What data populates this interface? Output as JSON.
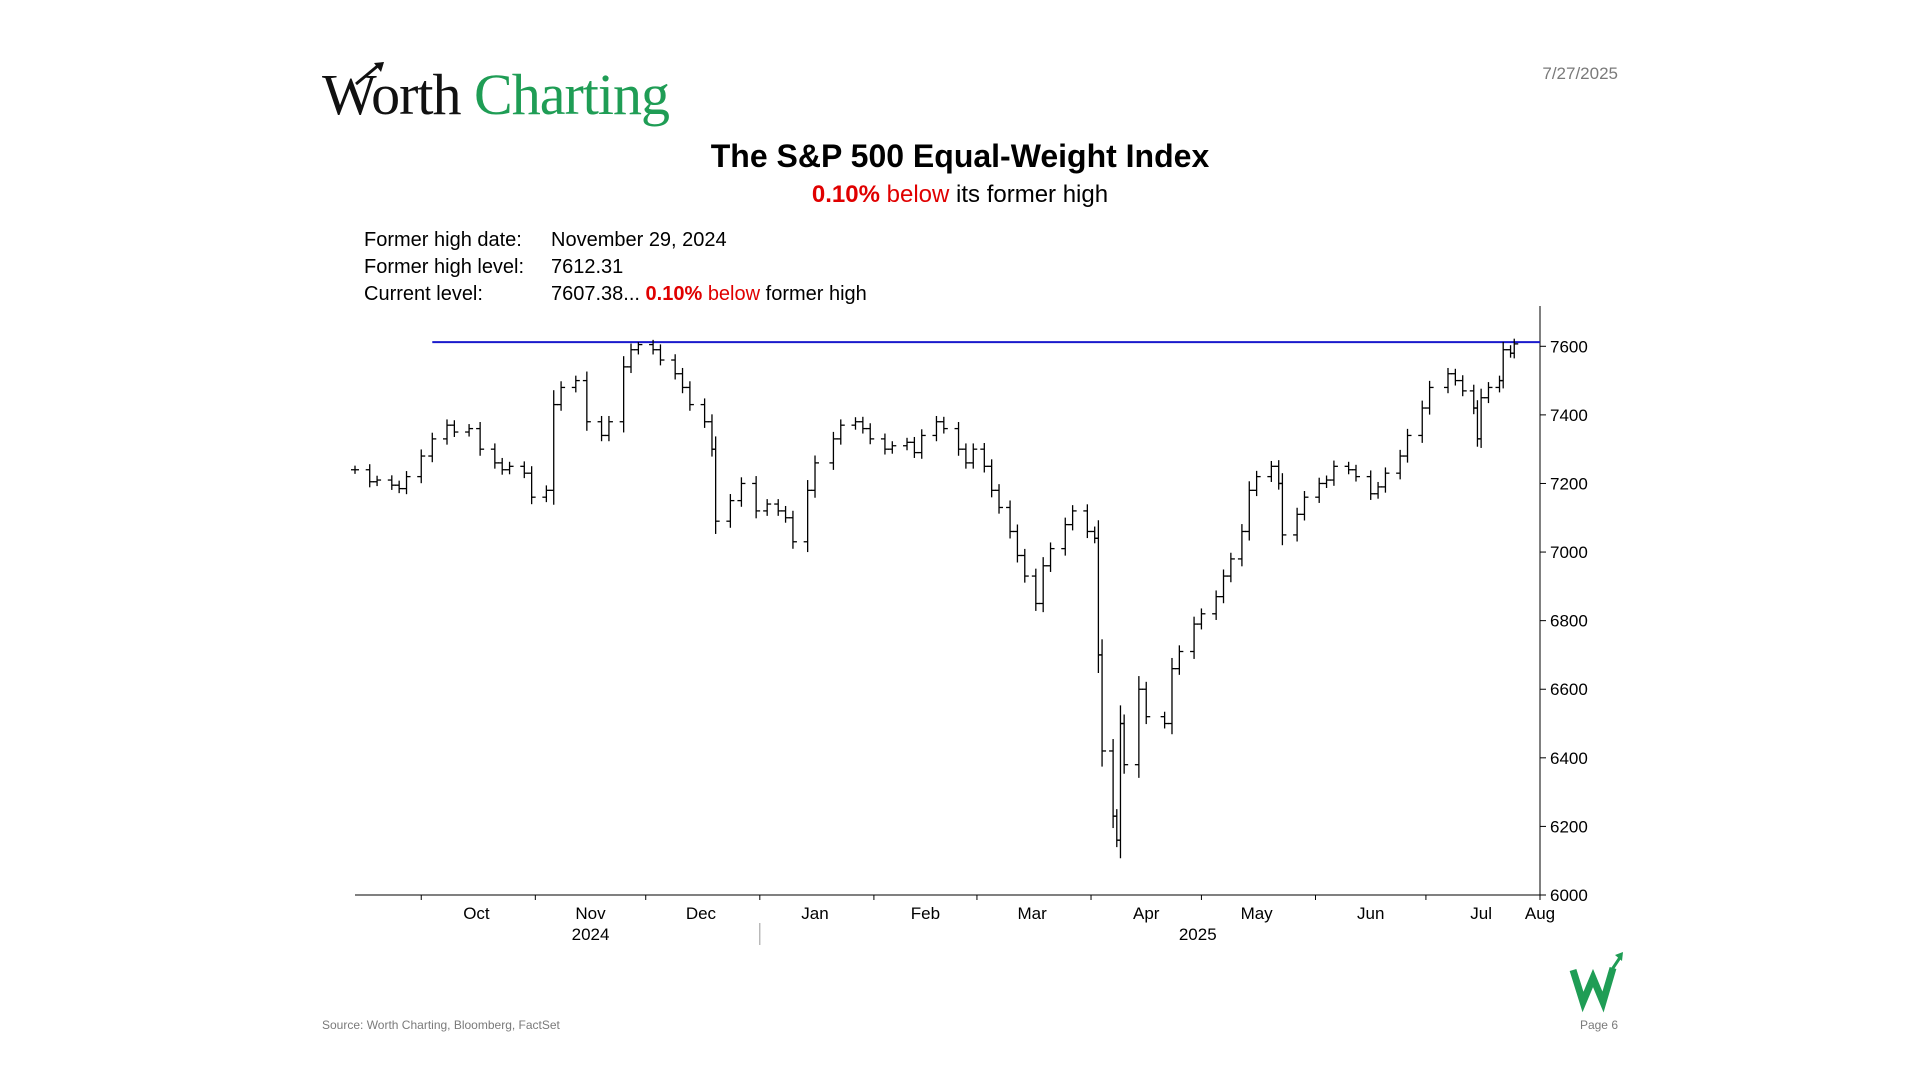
{
  "brand": {
    "word1": "Worth",
    "word2": "Charting"
  },
  "date": "7/27/2025",
  "title": "The S&P 500 Equal-Weight Index",
  "subtitle": {
    "pct": "0.10%",
    "below": "below",
    "rest": "its former high"
  },
  "stats": {
    "high_date_label": "Former high date:",
    "high_date_value": "November 29, 2024",
    "high_level_label": "Former high level:",
    "high_level_value": "7612.31",
    "current_label": "Current level:",
    "current_value": "7607.38...",
    "current_pct": "0.10%",
    "current_below": "below",
    "current_rest": "former high"
  },
  "footer": {
    "source": "Source: Worth Charting, Bloomberg, FactSet",
    "page": "Page 6"
  },
  "colors": {
    "brand_green": "#1f9d55",
    "highlight_red": "#e00000",
    "high_line": "#1a1acc",
    "bars": "#000000"
  },
  "icons": {
    "logo_mark": "w-arrow-logo-icon",
    "logo_arrow": "arrow-up-right-icon"
  },
  "chart_data": {
    "type": "ohlc-bar",
    "y_range": [
      6000,
      7700
    ],
    "y_ticks": [
      6000,
      6200,
      6400,
      6600,
      6800,
      7000,
      7200,
      7400,
      7600
    ],
    "y_axis_position": "right",
    "x_range": [
      "2024-09-13",
      "2025-08-01"
    ],
    "month_labels": [
      {
        "label": "Oct",
        "date": "2024-10-16"
      },
      {
        "label": "Nov",
        "date": "2024-11-16"
      },
      {
        "label": "Dec",
        "date": "2024-12-16"
      },
      {
        "label": "Jan",
        "date": "2025-01-16"
      },
      {
        "label": "Feb",
        "date": "2025-02-15"
      },
      {
        "label": "Mar",
        "date": "2025-03-16"
      },
      {
        "label": "Apr",
        "date": "2025-04-16"
      },
      {
        "label": "May",
        "date": "2025-05-16"
      },
      {
        "label": "Jun",
        "date": "2025-06-16"
      },
      {
        "label": "Jul",
        "date": "2025-07-16"
      },
      {
        "label": "Aug",
        "date": "2025-08-01"
      }
    ],
    "year_labels": [
      {
        "label": "2024",
        "date": "2024-11-16"
      },
      {
        "label": "2025",
        "date": "2025-04-30"
      }
    ],
    "year_separator": "2025-01-01",
    "former_high": {
      "level": 7612.31,
      "from": "2024-10-04",
      "to": "2025-08-01"
    },
    "series": [
      {
        "name": "S&P 500 Equal-Weight Index",
        "closes": [
          [
            "2024-09-13",
            7240
          ],
          [
            "2024-09-17",
            7205
          ],
          [
            "2024-09-19",
            7210
          ],
          [
            "2024-09-23",
            7195
          ],
          [
            "2024-09-25",
            7185
          ],
          [
            "2024-09-27",
            7220
          ],
          [
            "2024-10-01",
            7280
          ],
          [
            "2024-10-04",
            7330
          ],
          [
            "2024-10-08",
            7370
          ],
          [
            "2024-10-10",
            7350
          ],
          [
            "2024-10-14",
            7360
          ],
          [
            "2024-10-17",
            7300
          ],
          [
            "2024-10-21",
            7260
          ],
          [
            "2024-10-23",
            7240
          ],
          [
            "2024-10-25",
            7250
          ],
          [
            "2024-10-29",
            7230
          ],
          [
            "2024-10-31",
            7160
          ],
          [
            "2024-11-04",
            7180
          ],
          [
            "2024-11-06",
            7430
          ],
          [
            "2024-11-08",
            7480
          ],
          [
            "2024-11-12",
            7500
          ],
          [
            "2024-11-15",
            7380
          ],
          [
            "2024-11-19",
            7340
          ],
          [
            "2024-11-21",
            7380
          ],
          [
            "2024-11-25",
            7540
          ],
          [
            "2024-11-27",
            7590
          ],
          [
            "2024-11-29",
            7605
          ],
          [
            "2024-12-03",
            7590
          ],
          [
            "2024-12-05",
            7560
          ],
          [
            "2024-12-09",
            7520
          ],
          [
            "2024-12-11",
            7480
          ],
          [
            "2024-12-13",
            7430
          ],
          [
            "2024-12-17",
            7380
          ],
          [
            "2024-12-19",
            7300
          ],
          [
            "2024-12-20",
            7090
          ],
          [
            "2024-12-24",
            7150
          ],
          [
            "2024-12-27",
            7200
          ],
          [
            "2024-12-31",
            7120
          ],
          [
            "2025-01-03",
            7140
          ],
          [
            "2025-01-06",
            7120
          ],
          [
            "2025-01-08",
            7100
          ],
          [
            "2025-01-10",
            7030
          ],
          [
            "2025-01-14",
            7180
          ],
          [
            "2025-01-16",
            7260
          ],
          [
            "2025-01-21",
            7330
          ],
          [
            "2025-01-23",
            7370
          ],
          [
            "2025-01-27",
            7380
          ],
          [
            "2025-01-29",
            7360
          ],
          [
            "2025-01-31",
            7330
          ],
          [
            "2025-02-04",
            7300
          ],
          [
            "2025-02-06",
            7310
          ],
          [
            "2025-02-10",
            7320
          ],
          [
            "2025-02-12",
            7290
          ],
          [
            "2025-02-14",
            7340
          ],
          [
            "2025-02-18",
            7380
          ],
          [
            "2025-02-20",
            7360
          ],
          [
            "2025-02-24",
            7300
          ],
          [
            "2025-02-26",
            7260
          ],
          [
            "2025-02-28",
            7300
          ],
          [
            "2025-03-03",
            7250
          ],
          [
            "2025-03-05",
            7180
          ],
          [
            "2025-03-07",
            7130
          ],
          [
            "2025-03-10",
            7060
          ],
          [
            "2025-03-12",
            6990
          ],
          [
            "2025-03-14",
            6930
          ],
          [
            "2025-03-17",
            6850
          ],
          [
            "2025-03-19",
            6960
          ],
          [
            "2025-03-21",
            7010
          ],
          [
            "2025-03-25",
            7080
          ],
          [
            "2025-03-27",
            7120
          ],
          [
            "2025-03-31",
            7060
          ],
          [
            "2025-04-02",
            7040
          ],
          [
            "2025-04-03",
            6700
          ],
          [
            "2025-04-04",
            6420
          ],
          [
            "2025-04-07",
            6230
          ],
          [
            "2025-04-08",
            6160
          ],
          [
            "2025-04-09",
            6500
          ],
          [
            "2025-04-10",
            6380
          ],
          [
            "2025-04-14",
            6600
          ],
          [
            "2025-04-16",
            6520
          ],
          [
            "2025-04-21",
            6500
          ],
          [
            "2025-04-23",
            6660
          ],
          [
            "2025-04-25",
            6710
          ],
          [
            "2025-04-29",
            6790
          ],
          [
            "2025-05-01",
            6820
          ],
          [
            "2025-05-05",
            6870
          ],
          [
            "2025-05-07",
            6930
          ],
          [
            "2025-05-09",
            6980
          ],
          [
            "2025-05-12",
            7060
          ],
          [
            "2025-05-14",
            7180
          ],
          [
            "2025-05-16",
            7220
          ],
          [
            "2025-05-20",
            7250
          ],
          [
            "2025-05-22",
            7200
          ],
          [
            "2025-05-23",
            7050
          ],
          [
            "2025-05-27",
            7110
          ],
          [
            "2025-05-29",
            7160
          ],
          [
            "2025-06-02",
            7200
          ],
          [
            "2025-06-04",
            7210
          ],
          [
            "2025-06-06",
            7250
          ],
          [
            "2025-06-10",
            7240
          ],
          [
            "2025-06-12",
            7220
          ],
          [
            "2025-06-16",
            7170
          ],
          [
            "2025-06-18",
            7190
          ],
          [
            "2025-06-20",
            7230
          ],
          [
            "2025-06-24",
            7280
          ],
          [
            "2025-06-26",
            7340
          ],
          [
            "2025-06-30",
            7420
          ],
          [
            "2025-07-02",
            7480
          ],
          [
            "2025-07-07",
            7520
          ],
          [
            "2025-07-09",
            7500
          ],
          [
            "2025-07-11",
            7470
          ],
          [
            "2025-07-14",
            7420
          ],
          [
            "2025-07-15",
            7330
          ],
          [
            "2025-07-16",
            7450
          ],
          [
            "2025-07-18",
            7480
          ],
          [
            "2025-07-21",
            7500
          ],
          [
            "2025-07-22",
            7590
          ],
          [
            "2025-07-24",
            7580
          ],
          [
            "2025-07-25",
            7607
          ]
        ]
      }
    ]
  }
}
